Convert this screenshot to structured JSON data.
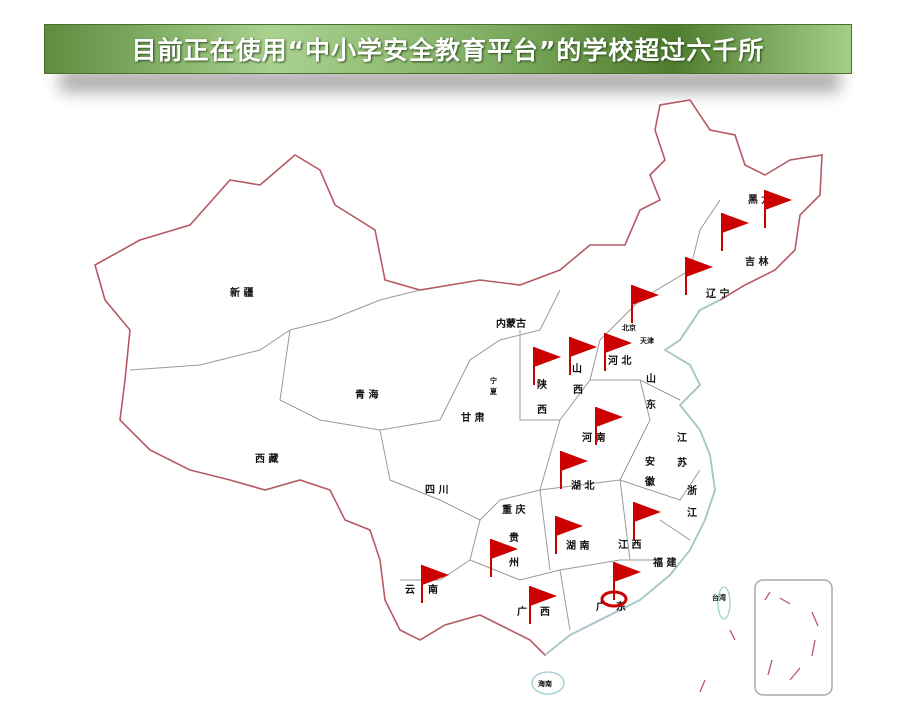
{
  "title": "目前正在使用“中小学安全教育平台”的学校超过六千所",
  "colors": {
    "border": "#b55a63",
    "province_line": "#9a9a9a",
    "coast": "#9ccfd0",
    "flag": "#cc0000",
    "banner": "#7fae62"
  },
  "provinces": [
    "黑 龙",
    "吉 林",
    "辽 宁",
    "北京",
    "天津",
    "河 北",
    "山",
    "西",
    "陕",
    "西",
    "山",
    "东",
    "内蒙古",
    "宁",
    "夏",
    "甘 肃",
    "青 海",
    "新 疆",
    "西 藏",
    "四 川",
    "重 庆",
    "贵",
    "州",
    "云",
    "南",
    "广",
    "西",
    "广",
    "东",
    "湖 南",
    "湖 北",
    "河 南",
    "安",
    "徽",
    "江",
    "苏",
    "浙",
    "江",
    "江 西",
    "福 建",
    "台湾",
    "海南"
  ],
  "flags": [
    "黑龙江",
    "吉林",
    "辽宁",
    "北京",
    "河北",
    "山西",
    "陕西",
    "河南",
    "湖北",
    "江西",
    "湖南",
    "贵州",
    "云南",
    "广西",
    "广东"
  ],
  "highlight": "广东"
}
